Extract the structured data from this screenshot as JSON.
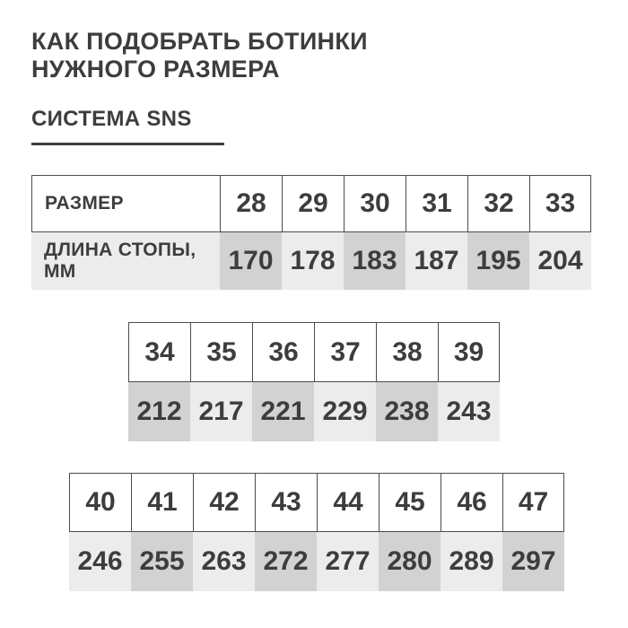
{
  "title": {
    "line1": "КАК ПОДОБРАТЬ БОТИНКИ",
    "line2": "НУЖНОГО РАЗМЕРА"
  },
  "subtitle": "СИСТЕМА SNS",
  "labels": {
    "size": "РАЗМЕР",
    "foot_length": "ДЛИНА СТОПЫ, ММ"
  },
  "tables": [
    {
      "sizes": [
        "28",
        "29",
        "30",
        "31",
        "32",
        "33"
      ],
      "lengths": [
        "170",
        "178",
        "183",
        "187",
        "195",
        "204"
      ]
    },
    {
      "sizes": [
        "34",
        "35",
        "36",
        "37",
        "38",
        "39"
      ],
      "lengths": [
        "212",
        "217",
        "221",
        "229",
        "238",
        "243"
      ]
    },
    {
      "sizes": [
        "40",
        "41",
        "42",
        "43",
        "44",
        "45",
        "46",
        "47"
      ],
      "lengths": [
        "246",
        "255",
        "263",
        "272",
        "277",
        "280",
        "289",
        "297"
      ]
    }
  ],
  "colors": {
    "text": "#3d3d3d",
    "border": "#4c4c4c",
    "cell_dark": "#d2d2d2",
    "cell_light": "#ececec",
    "background": "#ffffff"
  }
}
